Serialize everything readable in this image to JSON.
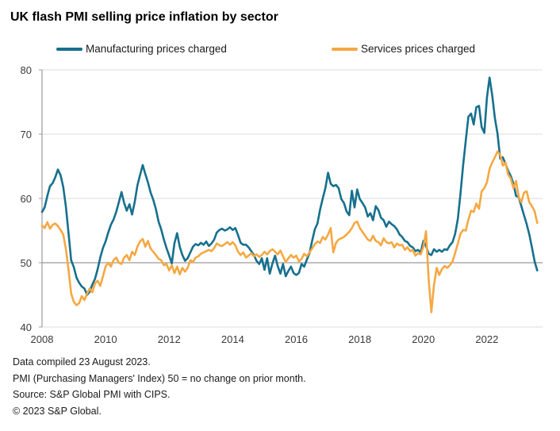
{
  "title": "UK flash PMI selling price inflation by sector",
  "legend": {
    "items": [
      {
        "label": "Manufacturing prices charged",
        "color": "#16708E"
      },
      {
        "label": "Services prices charged",
        "color": "#F5A843"
      }
    ]
  },
  "footer": {
    "lines": [
      "Data compiled 23 August 2023.",
      "PMI (Purchasing Managers' Index) 50 = no change on prior month.",
      "Source: S&P Global PMI with CIPS.",
      "© 2023 S&P Global."
    ]
  },
  "chart_data": {
    "type": "line",
    "title": "UK flash PMI selling price inflation by sector",
    "xlabel": "",
    "ylabel": "",
    "x_unit": "monthly, decimal years",
    "start_year": 2008,
    "start_month": 1,
    "end_label": "2023-08",
    "xlim": [
      2008,
      2023.75
    ],
    "ylim": [
      40,
      80
    ],
    "x_ticks": [
      2008,
      2010,
      2012,
      2014,
      2016,
      2018,
      2020,
      2022
    ],
    "y_ticks": [
      40,
      50,
      60,
      70,
      80
    ],
    "reference_line": 50,
    "grid": "horizontal",
    "legend_position": "top",
    "colors": {
      "grid": "#dedede",
      "reference": "#9b9b9b",
      "axis": "#9b9b9b"
    },
    "series": [
      {
        "name": "Manufacturing prices charged",
        "color": "#16708E",
        "values": [
          57.9,
          58.6,
          60.4,
          61.9,
          62.4,
          63.3,
          64.5,
          63.6,
          61.8,
          58.8,
          54.6,
          50.4,
          49.3,
          47.7,
          46.9,
          46.3,
          46.0,
          45.0,
          45.5,
          46.6,
          47.5,
          49.0,
          50.8,
          52.3,
          53.3,
          54.7,
          55.9,
          56.7,
          57.9,
          59.4,
          61.0,
          59.3,
          58.1,
          59.1,
          57.5,
          59.5,
          62.0,
          63.6,
          65.2,
          63.8,
          62.5,
          60.9,
          59.8,
          58.3,
          56.4,
          55.2,
          53.6,
          52.3,
          51.1,
          49.9,
          53.0,
          54.6,
          52.5,
          51.2,
          50.3,
          50.7,
          51.6,
          52.5,
          52.9,
          52.7,
          53.1,
          52.8,
          53.3,
          52.6,
          53.0,
          53.6,
          54.7,
          55.1,
          55.3,
          55.0,
          55.2,
          55.5,
          55.1,
          55.4,
          54.3,
          53.1,
          52.8,
          52.8,
          52.4,
          51.8,
          51.2,
          50.3,
          49.8,
          50.7,
          48.9,
          50.7,
          48.3,
          49.9,
          51.1,
          49.5,
          48.3,
          49.8,
          47.9,
          48.7,
          49.4,
          48.4,
          48.1,
          48.4,
          49.8,
          49.4,
          50.5,
          51.5,
          53.4,
          55.2,
          56.1,
          58.3,
          60.0,
          61.6,
          64.0,
          62.3,
          61.9,
          62.1,
          61.6,
          59.9,
          59.3,
          58.0,
          57.4,
          61.2,
          58.6,
          61.4,
          59.9,
          59.3,
          58.6,
          57.2,
          57.7,
          56.6,
          58.8,
          58.2,
          57.0,
          56.6,
          55.6,
          56.4,
          56.0,
          55.7,
          55.2,
          54.4,
          54.0,
          53.4,
          53.2,
          52.6,
          52.4,
          51.8,
          52.0,
          51.6,
          53.4,
          52.6,
          51.4,
          51.2,
          52.1,
          51.7,
          52.0,
          51.7,
          52.1,
          52.0,
          52.7,
          53.2,
          54.5,
          56.8,
          60.7,
          65.1,
          69.0,
          72.7,
          73.2,
          71.5,
          74.2,
          74.4,
          71.1,
          70.2,
          75.7,
          78.8,
          76.0,
          72.5,
          70.1,
          66.2,
          66.4,
          65.4,
          64.3,
          63.5,
          62.3,
          60.4,
          60.2,
          58.8,
          57.4,
          56.0,
          54.4,
          52.4,
          50.2,
          48.8
        ]
      },
      {
        "name": "Services prices charged",
        "color": "#F5A843",
        "values": [
          55.8,
          55.4,
          56.3,
          55.3,
          55.9,
          56.1,
          55.7,
          55.1,
          54.4,
          52.2,
          48.9,
          45.2,
          43.9,
          43.4,
          43.7,
          44.8,
          44.2,
          45.2,
          46.0,
          45.4,
          46.8,
          47.2,
          46.4,
          47.9,
          49.4,
          50.0,
          49.4,
          50.4,
          50.8,
          50.0,
          49.8,
          50.8,
          51.2,
          50.4,
          51.7,
          51.2,
          52.5,
          53.3,
          53.7,
          52.5,
          53.4,
          52.2,
          51.7,
          51.2,
          50.6,
          50.4,
          49.6,
          49.8,
          48.8,
          49.6,
          48.4,
          49.4,
          48.2,
          49.2,
          48.6,
          49.2,
          50.4,
          50.1,
          50.8,
          51.0,
          51.4,
          51.6,
          51.8,
          52.0,
          51.8,
          52.3,
          53.0,
          52.7,
          52.6,
          52.9,
          53.2,
          52.8,
          53.2,
          52.7,
          51.7,
          51.2,
          51.6,
          50.8,
          51.1,
          51.5,
          51.0,
          51.3,
          50.9,
          51.2,
          51.7,
          51.3,
          51.8,
          52.1,
          51.7,
          51.3,
          51.9,
          51.0,
          50.1,
          50.7,
          51.2,
          50.8,
          51.1,
          50.2,
          50.6,
          51.4,
          51.0,
          51.6,
          52.2,
          52.9,
          53.3,
          53.1,
          54.0,
          53.6,
          54.4,
          55.4,
          51.6,
          53.1,
          53.6,
          53.8,
          54.0,
          54.4,
          54.8,
          55.4,
          56.2,
          56.4,
          55.4,
          54.8,
          54.2,
          53.6,
          53.4,
          54.2,
          53.4,
          53.2,
          52.7,
          53.8,
          53.2,
          53.0,
          53.2,
          52.4,
          53.0,
          52.7,
          52.8,
          52.0,
          52.4,
          51.8,
          52.0,
          51.1,
          51.5,
          51.3,
          52.5,
          54.9,
          47.5,
          42.3,
          46.5,
          49.2,
          48.1,
          49.0,
          49.5,
          49.2,
          49.6,
          50.2,
          51.5,
          53.0,
          54.5,
          55.1,
          55.0,
          56.7,
          58.1,
          57.9,
          59.2,
          58.4,
          61.1,
          61.6,
          62.5,
          64.6,
          65.6,
          66.4,
          67.3,
          66.8,
          65.1,
          65.6,
          63.7,
          63.1,
          61.6,
          62.7,
          60.2,
          59.4,
          60.9,
          61.1,
          59.4,
          58.8,
          58.0,
          56.2
        ]
      }
    ]
  }
}
